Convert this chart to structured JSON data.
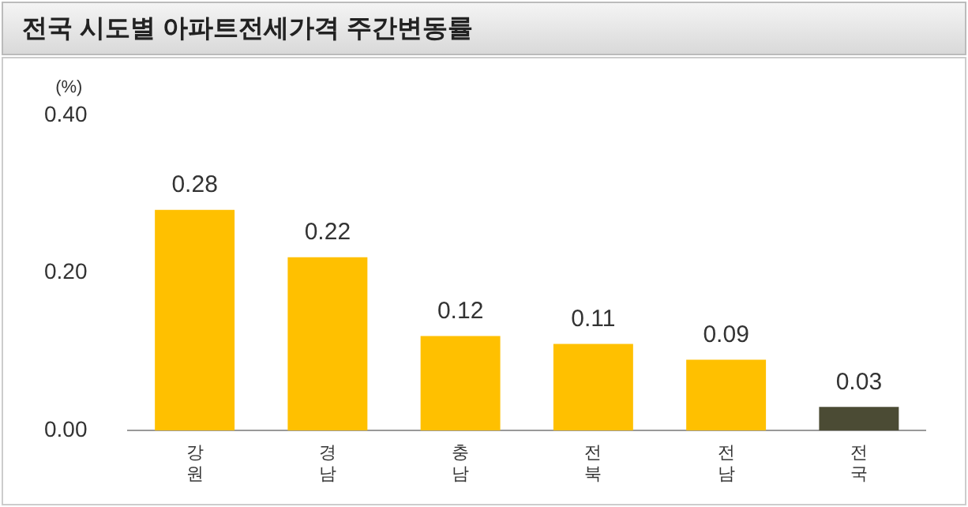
{
  "chart_data": {
    "type": "bar",
    "title": "전국 시도별 아파트전세가격 주간변동률",
    "ylabel": "(%)",
    "categories": [
      "강원",
      "경남",
      "충남",
      "전북",
      "전남",
      "전국"
    ],
    "values": [
      0.28,
      0.22,
      0.12,
      0.11,
      0.09,
      0.03
    ],
    "colors": [
      "#ffc000",
      "#ffc000",
      "#ffc000",
      "#ffc000",
      "#ffc000",
      "#4b4b34"
    ],
    "ylim": [
      0,
      0.4
    ],
    "yticks": [
      {
        "value": 0,
        "label": "0.00"
      },
      {
        "value": 0.2,
        "label": "0.20"
      },
      {
        "value": 0.4,
        "label": "0.40"
      }
    ],
    "data_labels": true,
    "grid": false,
    "legend": false
  }
}
